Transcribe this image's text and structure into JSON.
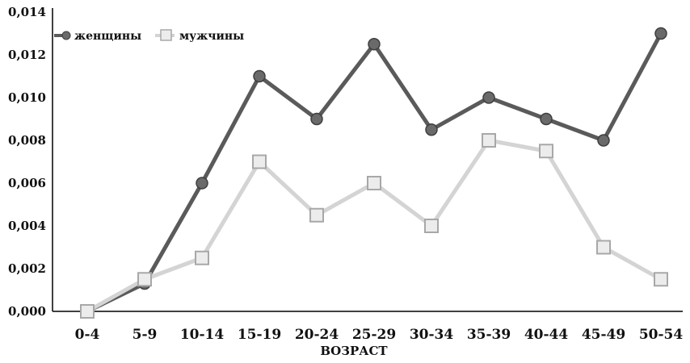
{
  "chart_data": {
    "type": "line",
    "title": "",
    "xlabel": "ВОЗРАСТ",
    "ylabel": "",
    "categories": [
      "0-4",
      "5-9",
      "10-14",
      "15-19",
      "20-24",
      "25-29",
      "30-34",
      "35-39",
      "40-44",
      "45-49",
      "50-54"
    ],
    "yticks": [
      "0,000",
      "0,002",
      "0,004",
      "0,006",
      "0,008",
      "0,010",
      "0,012",
      "0,014"
    ],
    "ylim": [
      0,
      0.014
    ],
    "grid": false,
    "legend_position": "top-left",
    "series": [
      {
        "name": "женщины",
        "color": "#5a5a5a",
        "marker": "diamond",
        "values": [
          0.0,
          0.0013,
          0.006,
          0.011,
          0.009,
          0.0125,
          0.0085,
          0.01,
          0.009,
          0.008,
          0.013
        ]
      },
      {
        "name": "мужчины",
        "color": "#d4d4d4",
        "marker": "square",
        "values": [
          0.0,
          0.0015,
          0.0025,
          0.007,
          0.0045,
          0.006,
          0.004,
          0.008,
          0.0075,
          0.003,
          0.0015
        ]
      }
    ]
  }
}
